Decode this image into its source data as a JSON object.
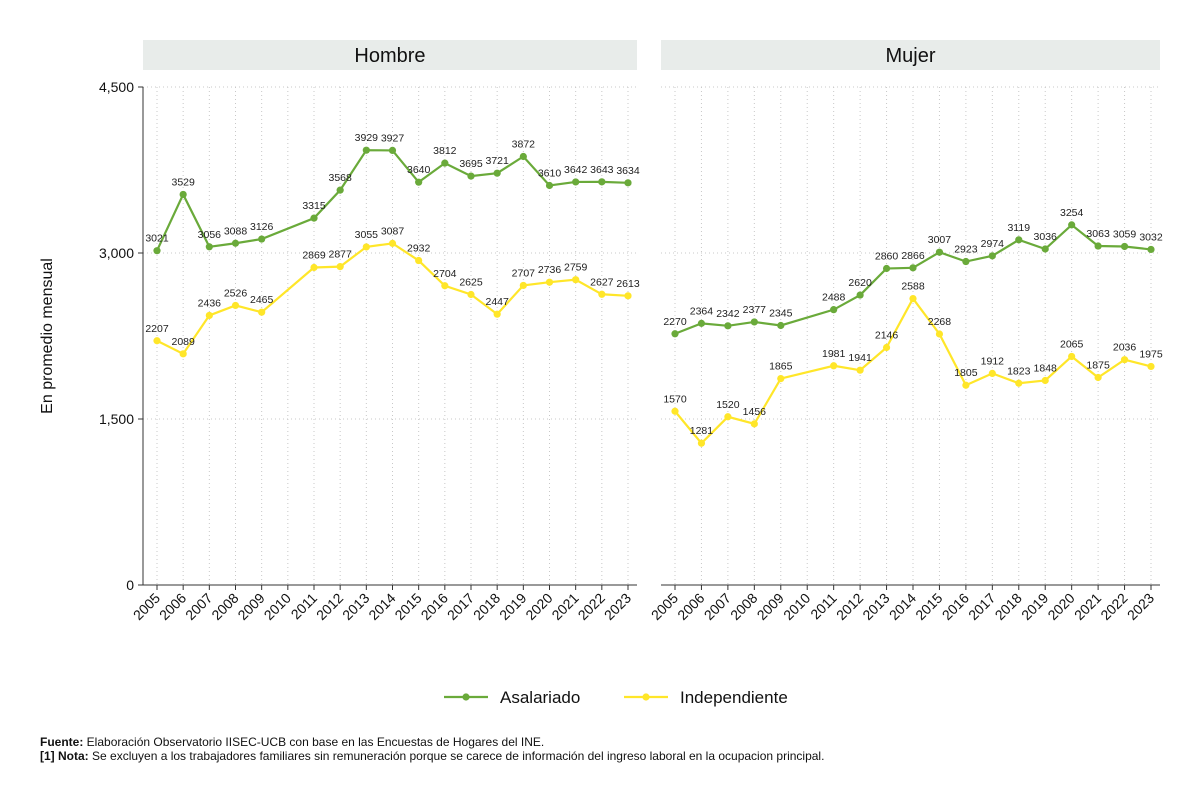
{
  "chart_data": {
    "type": "line",
    "ylabel": "En promedio mensual",
    "ylim": [
      0,
      4500
    ],
    "yticks": [
      0,
      1500,
      3000,
      4500
    ],
    "ytick_labels": [
      "0",
      "1,500",
      "3,000",
      "4,500"
    ],
    "years": [
      "2005",
      "2006",
      "2007",
      "2008",
      "2009",
      "2010",
      "2011",
      "2012",
      "2013",
      "2014",
      "2015",
      "2016",
      "2017",
      "2018",
      "2019",
      "2020",
      "2021",
      "2022",
      "2023"
    ],
    "legend": [
      "Asalariado",
      "Independiente"
    ],
    "colors": {
      "asalariado": "#6aaa3a",
      "independiente": "#ffe629",
      "panel_header": "#e8ecea",
      "grid": "#c8c8c8"
    },
    "panels": [
      {
        "title": "Hombre",
        "series": [
          {
            "name": "Asalariado",
            "values": [
              3021,
              3529,
              3056,
              3088,
              3126,
              null,
              3315,
              3568,
              3929,
              3927,
              3640,
              3812,
              3695,
              3721,
              3872,
              3610,
              3642,
              3643,
              3634
            ]
          },
          {
            "name": "Independiente",
            "values": [
              2207,
              2089,
              2436,
              2526,
              2465,
              null,
              2869,
              2877,
              3055,
              3087,
              2932,
              2704,
              2625,
              2447,
              2707,
              2736,
              2759,
              2627,
              2613
            ]
          }
        ]
      },
      {
        "title": "Mujer",
        "series": [
          {
            "name": "Asalariado",
            "values": [
              2270,
              2364,
              2342,
              2377,
              2345,
              null,
              2488,
              2620,
              2860,
              2866,
              3007,
              2923,
              2974,
              3119,
              3036,
              3254,
              3063,
              3059,
              3032
            ]
          },
          {
            "name": "Independiente",
            "values": [
              1570,
              1281,
              1520,
              1456,
              1865,
              null,
              1981,
              1941,
              2146,
              2588,
              2268,
              1805,
              1912,
              1823,
              1848,
              2065,
              1875,
              2036,
              1975
            ]
          }
        ]
      }
    ]
  },
  "footer": {
    "fuente_label": "Fuente:",
    "fuente_text": " Elaboración Observatorio IISEC-UCB con base en las Encuestas de Hogares del INE.",
    "nota_label": "[1] Nota:",
    "nota_text": " Se excluyen a los trabajadores familiares sin remuneración porque se carece de información del ingreso laboral en la ocupacion principal."
  }
}
